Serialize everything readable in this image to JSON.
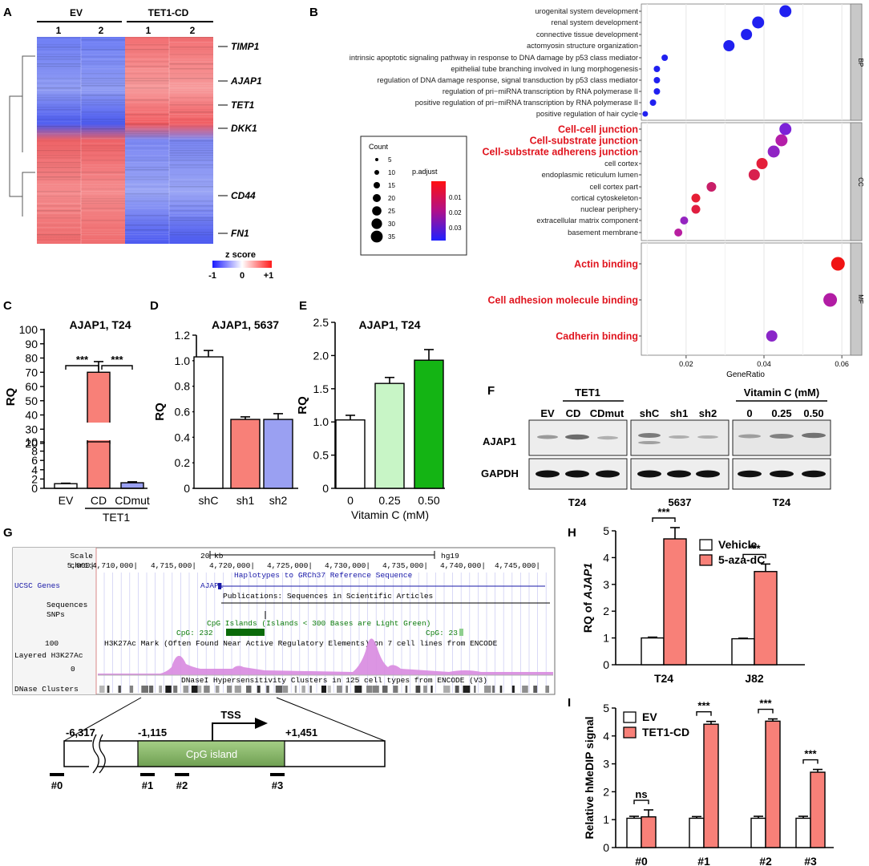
{
  "panel_letters": {
    "a": "A",
    "b": "B",
    "c": "C",
    "d": "D",
    "e": "E",
    "f": "F",
    "g": "G",
    "h": "H",
    "i": "I"
  },
  "heatmap": {
    "group_ev": "EV",
    "group_tet": "TET1-CD",
    "rep1": "1",
    "rep2": "2",
    "genes": [
      "TIMP1",
      "AJAP1",
      "TET1",
      "DKK1",
      "CD44",
      "FN1"
    ],
    "legend_title": "z score",
    "legend_min": "-1",
    "legend_mid": "0",
    "legend_max": "+1"
  },
  "go": {
    "bp_terms": [
      "urogenital system development",
      "renal system development",
      "connective tissue development",
      "actomyosin structure organization",
      "intrinsic apoptotic signaling pathway in response to DNA damage by p53 class mediator",
      "epithelial tube branching involved in lung morphogenesis",
      "regulation of DNA damage response, signal transduction by p53 class mediator",
      "regulation of pri−miRNA transcription by RNA polymerase II",
      "positive regulation of pri−miRNA transcription by RNA polymerase II",
      "positive regulation of hair cycle"
    ],
    "cc_terms": [
      "Cell-cell junction",
      "Cell-substrate junction",
      "Cell-substrate adherens junction",
      "cell cortex",
      "endoplasmic reticulum lumen",
      "cell cortex part",
      "cortical cytoskeleton",
      "nuclear periphery",
      "extracellular matrix component",
      "basement membrane"
    ],
    "mf_terms": [
      "Actin binding",
      "Cell adhesion molecule binding",
      "Cadherin binding"
    ],
    "facet_bp": "BP",
    "facet_cc": "CC",
    "facet_mf": "MF",
    "xlabel": "GeneRatio",
    "xticks": [
      "0.02",
      "0.04",
      "0.06"
    ],
    "legend_count": "Count",
    "count_levels": [
      "5",
      "10",
      "15",
      "20",
      "25",
      "30",
      "35"
    ],
    "legend_padj": "p.adjust",
    "padj_levels": [
      "0.01",
      "0.02",
      "0.03"
    ],
    "highlight_color": "#e0141e"
  },
  "chart_data": [
    {
      "panel": "C",
      "type": "bar",
      "title": "AJAP1, T24",
      "ylabel": "RQ",
      "categories": [
        "EV",
        "CD",
        "CDmut"
      ],
      "group_label": "TET1",
      "values": [
        1,
        70,
        1.2
      ],
      "errors": [
        0.1,
        7.5,
        0.2
      ],
      "yticks_upper": [
        "100",
        "90",
        "80",
        "70",
        "60",
        "50",
        "40",
        "30",
        "20"
      ],
      "yticks_lower": [
        "10",
        "8",
        "6",
        "4",
        "2",
        "0"
      ],
      "significance": [
        "***",
        "***"
      ],
      "colors": [
        "#ffffff",
        "#f88078",
        "#9aa0f2"
      ]
    },
    {
      "panel": "D",
      "type": "bar",
      "title": "AJAP1, 5637",
      "ylabel": "RQ",
      "categories": [
        "shC",
        "sh1",
        "sh2"
      ],
      "values": [
        1.03,
        0.54,
        0.54
      ],
      "errors": [
        0.05,
        0.02,
        0.045
      ],
      "ylim": [
        0,
        1.2
      ],
      "yticks": [
        "0",
        "0.2",
        "0.4",
        "0.6",
        "0.8",
        "1.0",
        "1.2"
      ],
      "colors": [
        "#ffffff",
        "#f88078",
        "#9aa0f2"
      ]
    },
    {
      "panel": "E",
      "type": "bar",
      "title": "AJAP1, T24",
      "ylabel": "RQ",
      "xlabel": "Vitamin C (mM)",
      "categories": [
        "0",
        "0.25",
        "0.50"
      ],
      "values": [
        1.03,
        1.58,
        1.93
      ],
      "errors": [
        0.07,
        0.09,
        0.16
      ],
      "ylim": [
        0,
        2.5
      ],
      "yticks": [
        "0",
        "0.5",
        "1.0",
        "1.5",
        "2.0",
        "2.5"
      ],
      "colors": [
        "#ffffff",
        "#c8f5c6",
        "#14b414"
      ]
    },
    {
      "panel": "H",
      "type": "bar",
      "ylabel_prefix": "RQ of ",
      "ylabel_gene": "AJAP1",
      "categories": [
        "T24",
        "J82"
      ],
      "series": [
        {
          "name": "Vehicle",
          "values": [
            1.0,
            0.97
          ],
          "errors": [
            0.03,
            0.02
          ]
        },
        {
          "name": "5-aza-dC",
          "values": [
            4.7,
            3.48
          ],
          "errors": [
            0.42,
            0.28
          ]
        }
      ],
      "ylim": [
        0,
        5
      ],
      "yticks": [
        "0",
        "1",
        "2",
        "3",
        "4",
        "5"
      ],
      "significance": [
        "***",
        "***"
      ],
      "colors": [
        "#ffffff",
        "#f88078"
      ]
    },
    {
      "panel": "I",
      "type": "bar",
      "ylabel": "Relative hMeDIP signal",
      "categories": [
        "#0",
        "#1",
        "#2",
        "#3"
      ],
      "series": [
        {
          "name": "EV",
          "values": [
            1.05,
            1.05,
            1.05,
            1.05
          ],
          "errors": [
            0.07,
            0.06,
            0.07,
            0.07
          ]
        },
        {
          "name": "TET1-CD",
          "values": [
            1.1,
            4.42,
            4.53,
            2.7
          ],
          "errors": [
            0.25,
            0.1,
            0.08,
            0.1
          ]
        }
      ],
      "ylim": [
        0,
        5
      ],
      "yticks": [
        "0",
        "1",
        "2",
        "3",
        "4",
        "5"
      ],
      "significance": [
        "ns",
        "***",
        "***",
        "***"
      ],
      "colors": [
        "#ffffff",
        "#f88078"
      ]
    }
  ],
  "western": {
    "ev": "EV",
    "tet1": "TET1",
    "cd": "CD",
    "cdmut": "CDmut",
    "shc": "shC",
    "sh1": "sh1",
    "sh2": "sh2",
    "vitc": "Vitamin C (mM)",
    "v0": "0",
    "v25": "0.25",
    "v50": "0.50",
    "band1": "AJAP1",
    "band2": "GAPDH",
    "cell1": "T24",
    "cell2": "5637",
    "cell3": "T24"
  },
  "browser": {
    "scale": "Scale",
    "scale_val": "20 kb",
    "assembly": "hg19",
    "chr": "chr1:",
    "coords": [
      "5,000|",
      "4,710,000|",
      "4,715,000|",
      "4,720,000|",
      "4,725,000|",
      "4,730,000|",
      "4,735,000|",
      "4,740,000|",
      "4,745,000|"
    ],
    "haplo": "Haplotypes to GRCh37 Reference Sequence",
    "ucsc": "UCSC Genes",
    "gene": "AJAP1",
    "seq": "Sequences",
    "pubs": "Publications: Sequences in Scientific Articles",
    "snps": "SNPs",
    "cpg_title": "CpG Islands (Islands < 300 Bases are Light Green)",
    "cpg1": "CpG: 232",
    "cpg2": "CpG: 23",
    "h3_100": "100",
    "h3_title": "H3K27Ac Mark (Often Found Near Active Regulatory Elements) on 7 cell lines from ENCODE",
    "layered": "Layered H3K27Ac",
    "h3_0": "0",
    "dnase_title": "DNaseI Hypersensitivity Clusters in 125 cell types from ENCODE (V3)",
    "dnase": "DNase Clusters"
  },
  "promoter": {
    "tss": "TSS",
    "cpg": "CpG island",
    "p1": "-6,317",
    "p2": "-1,115",
    "p3": "+1,451",
    "amp": [
      "#0",
      "#1",
      "#2",
      "#3"
    ]
  }
}
